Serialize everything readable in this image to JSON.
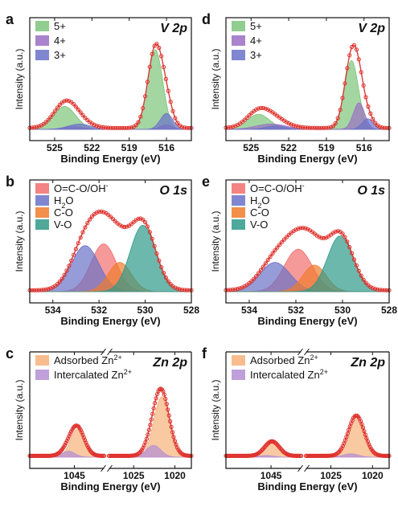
{
  "figure": {
    "title": ""
  },
  "colors": {
    "green": "#7ec47a",
    "purple": "#9a6fc4",
    "blue": "#6a72c8",
    "red": "#f26d6d",
    "orange": "#f07c2c",
    "teal": "#2f9a8a",
    "peach": "#f7b27a",
    "lavender": "#b48fd4",
    "dot": "#e0302b",
    "envelope": "#d93c36"
  },
  "chart_data": [
    {
      "panel": "a",
      "type": "area",
      "title": "V 2p",
      "xlabel": "Binding Energy (eV)",
      "ylabel": "Intensity (a.u.)",
      "xlim": [
        527,
        514
      ],
      "xticks": [
        525,
        522,
        519,
        516
      ],
      "legend_position": "top-left",
      "legend": [
        "5+",
        "4+",
        "3+"
      ],
      "series": [
        {
          "name": "5+",
          "color_key": "green",
          "peaks": [
            {
              "center": 524.2,
              "height": 0.26,
              "width": 0.9
            },
            {
              "center": 516.9,
              "height": 0.9,
              "width": 0.6
            }
          ]
        },
        {
          "name": "4+",
          "color_key": "purple",
          "peaks": [
            {
              "center": 523.5,
              "height": 0.03,
              "width": 0.8
            },
            {
              "center": 516.0,
              "height": 0.05,
              "width": 0.5
            }
          ]
        },
        {
          "name": "3+",
          "color_key": "blue",
          "peaks": [
            {
              "center": 523.0,
              "height": 0.06,
              "width": 0.9
            },
            {
              "center": 516.0,
              "height": 0.18,
              "width": 0.5
            }
          ]
        }
      ]
    },
    {
      "panel": "d",
      "type": "area",
      "title": "V 2p",
      "xlabel": "Binding Energy (eV)",
      "ylabel": "Intensity (a.u.)",
      "xlim": [
        527,
        514
      ],
      "xticks": [
        525,
        522,
        519,
        516
      ],
      "legend_position": "top-left",
      "legend": [
        "5+",
        "4+",
        "3+"
      ],
      "series": [
        {
          "name": "5+",
          "color_key": "green",
          "peaks": [
            {
              "center": 524.4,
              "height": 0.17,
              "width": 0.9
            },
            {
              "center": 517.0,
              "height": 0.78,
              "width": 0.55
            }
          ]
        },
        {
          "name": "4+",
          "color_key": "purple",
          "peaks": [
            {
              "center": 523.4,
              "height": 0.06,
              "width": 1.2
            },
            {
              "center": 516.4,
              "height": 0.3,
              "width": 0.45
            }
          ]
        },
        {
          "name": "3+",
          "color_key": "blue",
          "peaks": [
            {
              "center": 523.0,
              "height": 0.04,
              "width": 0.8
            },
            {
              "center": 515.7,
              "height": 0.12,
              "width": 0.45
            }
          ]
        }
      ]
    },
    {
      "panel": "b",
      "type": "area",
      "title": "O 1s",
      "xlabel": "Binding Energy (eV)",
      "ylabel": "Intensity (a.u.)",
      "xlim": [
        535,
        528
      ],
      "xticks": [
        534,
        532,
        530,
        528
      ],
      "legend_position": "top-left",
      "legend": [
        "O=C-O/OH-",
        "H2O",
        "C-O",
        "V-O"
      ],
      "series": [
        {
          "name": "O=C-O/OH-",
          "color_key": "red",
          "peaks": [
            {
              "center": 531.8,
              "height": 0.54,
              "width": 0.55
            }
          ]
        },
        {
          "name": "H2O",
          "color_key": "blue",
          "peaks": [
            {
              "center": 532.6,
              "height": 0.52,
              "width": 0.6
            }
          ]
        },
        {
          "name": "C-O",
          "color_key": "orange",
          "peaks": [
            {
              "center": 531.1,
              "height": 0.33,
              "width": 0.5
            }
          ]
        },
        {
          "name": "V-O",
          "color_key": "teal",
          "peaks": [
            {
              "center": 530.1,
              "height": 0.75,
              "width": 0.55
            }
          ]
        }
      ]
    },
    {
      "panel": "e",
      "type": "area",
      "title": "O 1s",
      "xlabel": "Binding Energy (eV)",
      "ylabel": "Intensity (a.u.)",
      "xlim": [
        535,
        528
      ],
      "xticks": [
        534,
        532,
        530,
        528
      ],
      "legend_position": "top-left",
      "legend": [
        "O=C-O/OH-",
        "H2O",
        "C-O",
        "V-O"
      ],
      "series": [
        {
          "name": "O=C-O/OH-",
          "color_key": "red",
          "peaks": [
            {
              "center": 531.9,
              "height": 0.48,
              "width": 0.6
            }
          ]
        },
        {
          "name": "H2O",
          "color_key": "blue",
          "peaks": [
            {
              "center": 532.9,
              "height": 0.33,
              "width": 0.65
            }
          ]
        },
        {
          "name": "C-O",
          "color_key": "orange",
          "peaks": [
            {
              "center": 531.2,
              "height": 0.3,
              "width": 0.5
            }
          ]
        },
        {
          "name": "V-O",
          "color_key": "teal",
          "peaks": [
            {
              "center": 530.1,
              "height": 0.63,
              "width": 0.55
            }
          ]
        }
      ]
    },
    {
      "panel": "c",
      "type": "area",
      "title": "Zn 2p",
      "xlabel": "Binding Energy (eV)",
      "ylabel": "Intensity (a.u.)",
      "broken_axis": true,
      "left_xlim": [
        1051,
        1041
      ],
      "right_xlim": [
        1028,
        1018
      ],
      "xticks": [
        1045,
        1025,
        1020
      ],
      "legend_position": "top-left",
      "legend": [
        "Adsorbed Zn2+",
        "Intercalated Zn2+"
      ],
      "series": [
        {
          "name": "Adsorbed Zn2+",
          "color_key": "peach",
          "peaks": [
            {
              "center": 1044.6,
              "height": 0.33,
              "width": 0.95
            },
            {
              "center": 1021.6,
              "height": 0.72,
              "width": 0.95
            }
          ]
        },
        {
          "name": "Intercalated Zn2+",
          "color_key": "lavender",
          "peaks": [
            {
              "center": 1045.8,
              "height": 0.07,
              "width": 0.9
            },
            {
              "center": 1022.6,
              "height": 0.14,
              "width": 0.9
            }
          ]
        }
      ]
    },
    {
      "panel": "f",
      "type": "area",
      "title": "Zn 2p",
      "xlabel": "Binding Energy (eV)",
      "ylabel": "Intensity (a.u.)",
      "broken_axis": true,
      "left_xlim": [
        1051,
        1041
      ],
      "right_xlim": [
        1028,
        1018
      ],
      "xticks": [
        1045,
        1025,
        1020
      ],
      "legend_position": "top-left",
      "legend": [
        "Adsorbed Zn2+",
        "Intercalated Zn2+"
      ],
      "series": [
        {
          "name": "Adsorbed Zn2+",
          "color_key": "peach",
          "peaks": [
            {
              "center": 1044.8,
              "height": 0.16,
              "width": 0.95
            },
            {
              "center": 1021.9,
              "height": 0.45,
              "width": 0.95
            }
          ]
        },
        {
          "name": "Intercalated Zn2+",
          "color_key": "lavender",
          "peaks": [
            {
              "center": 1045.6,
              "height": 0.02,
              "width": 0.9
            },
            {
              "center": 1022.6,
              "height": 0.04,
              "width": 0.9
            }
          ]
        }
      ]
    }
  ]
}
